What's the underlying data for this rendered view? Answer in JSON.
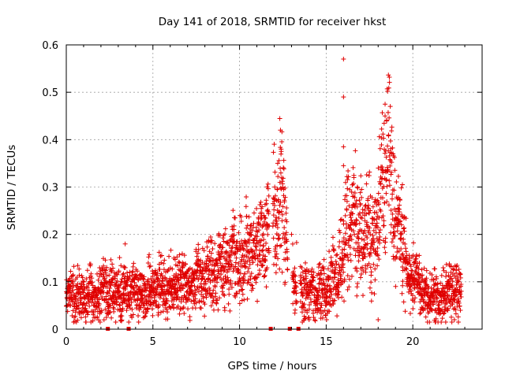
{
  "chart_data": {
    "type": "scatter",
    "title": "Day 141 of 2018, SRMTID for receiver hkst",
    "xlabel": "GPS time / hours",
    "ylabel": "SRMTID / TECUs",
    "xlim": [
      0,
      24
    ],
    "ylim": [
      0,
      0.6
    ],
    "xticks": [
      0,
      5,
      10,
      15,
      20
    ],
    "yticks": [
      0,
      0.1,
      0.2,
      0.3,
      0.4,
      0.5,
      0.6
    ],
    "xtick_labels": [
      "0",
      "5",
      "10",
      "15",
      "20"
    ],
    "ytick_labels": [
      "0",
      "0.1",
      "0.2",
      "0.3",
      "0.4",
      "0.5",
      "0.6"
    ],
    "grid": true,
    "marker": "+",
    "marker_color": "#e00000",
    "gap_marker_times": [
      2.4,
      3.6,
      11.8,
      12.9,
      13.4
    ],
    "series": [
      {
        "name": "SRMTID",
        "x": [
          0.0,
          0.2,
          0.4,
          0.6,
          0.8,
          1.0,
          1.2,
          1.4,
          1.6,
          1.8,
          2.0,
          2.2,
          2.4,
          2.6,
          2.8,
          3.0,
          3.2,
          3.4,
          3.6,
          3.8,
          4.0,
          4.2,
          4.4,
          4.6,
          4.8,
          5.0,
          5.2,
          5.4,
          5.6,
          5.8,
          6.0,
          6.2,
          6.4,
          6.6,
          6.8,
          7.0,
          7.2,
          7.4,
          7.6,
          7.8,
          8.0,
          8.2,
          8.4,
          8.6,
          8.8,
          9.0,
          9.2,
          9.4,
          9.6,
          9.8,
          10.0,
          10.2,
          10.4,
          10.6,
          10.8,
          11.0,
          11.2,
          11.4,
          11.6,
          11.8,
          12.0,
          12.2,
          12.4,
          12.6,
          12.8,
          13.0,
          13.2,
          13.4,
          13.6,
          13.8,
          14.0,
          14.2,
          14.4,
          14.6,
          14.8,
          15.0,
          15.2,
          15.4,
          15.6,
          15.8,
          16.0,
          16.2,
          16.4,
          16.6,
          16.8,
          17.0,
          17.2,
          17.4,
          17.6,
          17.8,
          18.0,
          18.2,
          18.4,
          18.6,
          18.8,
          19.0,
          19.2,
          19.4,
          19.6,
          19.8,
          20.0,
          20.2,
          20.4,
          20.6,
          20.8,
          21.0,
          21.2,
          21.4,
          21.6,
          21.8,
          22.0,
          22.2,
          22.4,
          22.6,
          22.8
        ],
        "y": [
          0.07,
          0.08,
          0.07,
          0.06,
          0.08,
          0.07,
          0.06,
          0.08,
          0.05,
          0.07,
          0.08,
          0.1,
          0.06,
          0.09,
          0.07,
          0.08,
          0.07,
          0.09,
          0.06,
          0.08,
          0.09,
          0.07,
          0.08,
          0.06,
          0.1,
          0.08,
          0.07,
          0.09,
          0.08,
          0.07,
          0.09,
          0.08,
          0.1,
          0.09,
          0.11,
          0.09,
          0.08,
          0.1,
          0.12,
          0.11,
          0.1,
          0.13,
          0.12,
          0.11,
          0.14,
          0.12,
          0.15,
          0.11,
          0.19,
          0.13,
          0.16,
          0.12,
          0.2,
          0.14,
          0.17,
          0.15,
          0.21,
          0.16,
          0.23,
          0.18,
          0.26,
          0.22,
          0.33,
          0.21,
          0.14,
          0.17,
          0.08,
          0.12,
          0.06,
          0.09,
          0.07,
          0.1,
          0.06,
          0.08,
          0.09,
          0.07,
          0.1,
          0.12,
          0.11,
          0.14,
          0.16,
          0.25,
          0.2,
          0.27,
          0.18,
          0.22,
          0.19,
          0.24,
          0.17,
          0.21,
          0.22,
          0.33,
          0.26,
          0.42,
          0.3,
          0.22,
          0.25,
          0.18,
          0.14,
          0.11,
          0.1,
          0.12,
          0.09,
          0.08,
          0.07,
          0.06,
          0.08,
          0.07,
          0.06,
          0.07,
          0.08,
          0.07,
          0.08,
          0.09,
          0.08
        ],
        "outliers": [
          [
            3.4,
            0.18
          ],
          [
            12.4,
            0.38
          ],
          [
            12.2,
            0.35
          ],
          [
            13.0,
            0.2
          ],
          [
            16.0,
            0.57
          ],
          [
            16.0,
            0.49
          ],
          [
            16.0,
            0.385
          ],
          [
            16.0,
            0.345
          ],
          [
            16.6,
            0.32
          ],
          [
            16.8,
            0.3
          ],
          [
            18.0,
            0.02
          ],
          [
            18.4,
            0.475
          ],
          [
            18.4,
            0.45
          ],
          [
            18.6,
            0.41
          ],
          [
            19.4,
            0.305
          ],
          [
            22.4,
            0.02
          ]
        ]
      }
    ]
  }
}
